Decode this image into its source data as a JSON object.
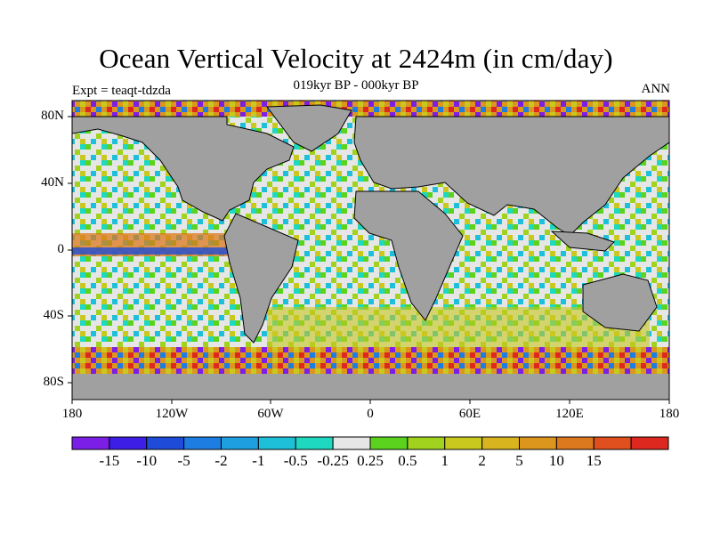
{
  "header": {
    "title": "Ocean Vertical Velocity at 2424m (in cm/day)",
    "subtitle": "019kyr BP - 000kyr BP",
    "experiment": "Expt = teaqt-tdzda",
    "season": "ANN"
  },
  "axes": {
    "lat_labels": [
      "80N",
      "40N",
      "0",
      "40S",
      "80S"
    ],
    "lon_labels": [
      "180",
      "120W",
      "60W",
      "0",
      "60E",
      "120E",
      "180"
    ]
  },
  "colorbar": {
    "colors": [
      "#7b1ee6",
      "#3c1ee6",
      "#1e4bd8",
      "#1e7de0",
      "#1ea0e0",
      "#1ebfd8",
      "#1ed8c0",
      "#e6e6e6",
      "#5ad21e",
      "#a0d21e",
      "#c8c81e",
      "#d8b41e",
      "#dc961e",
      "#dc781e",
      "#e0501e",
      "#dc281e"
    ],
    "labels": [
      "-15",
      "-10",
      "-5",
      "-2",
      "-1",
      "-0.5",
      "-0.25",
      "0.25",
      "0.5",
      "1",
      "2",
      "5",
      "10",
      "15"
    ]
  },
  "colors": {
    "land": "#a0a0a0",
    "ocean_base": "#e6e6e6"
  }
}
